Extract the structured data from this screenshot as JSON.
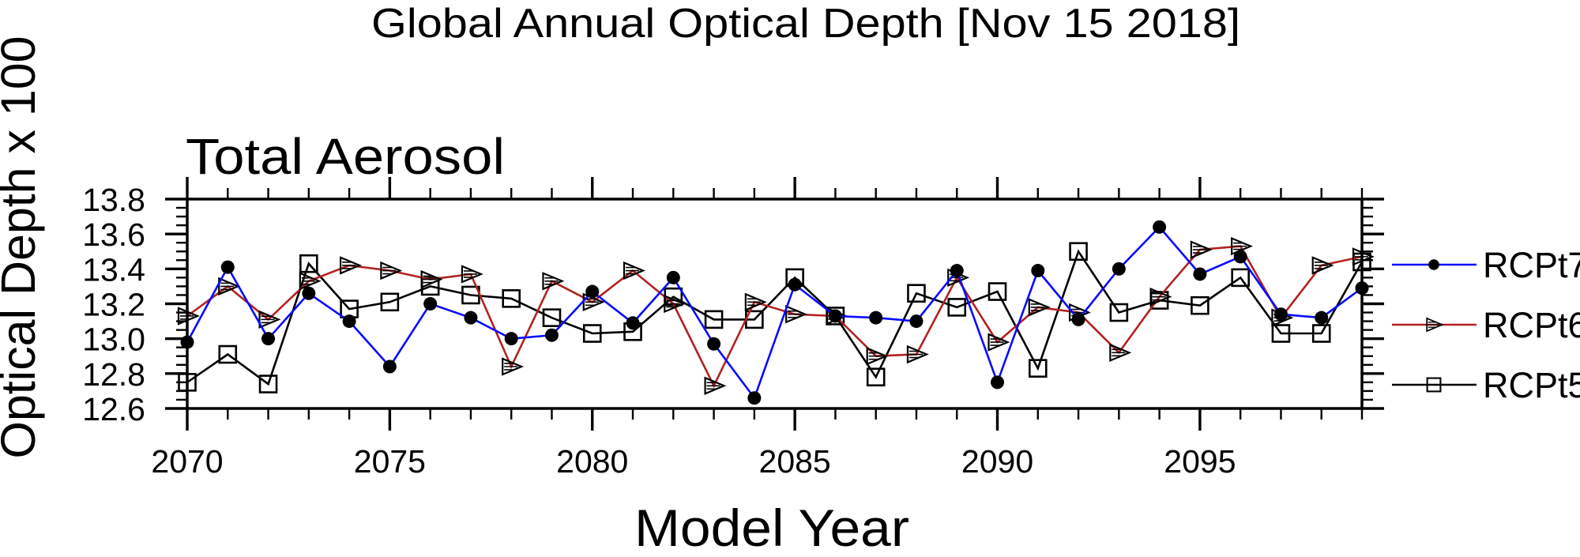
{
  "title": "Global Annual Optical Depth [Nov 15 2018]",
  "plot_heading": "Total Aerosol",
  "x_axis": {
    "label": "Model Year",
    "tick_labels": [
      "2070",
      "2075",
      "2080",
      "2085",
      "2090",
      "2095"
    ],
    "tick_years": [
      2070,
      2075,
      2080,
      2085,
      2090,
      2095
    ]
  },
  "y_axis": {
    "label": "Optical Depth x 100",
    "tick_labels": [
      "13.8",
      "13.6",
      "13.4",
      "13.2",
      "13.0",
      "12.8",
      "12.6"
    ],
    "tick_values": [
      13.8,
      13.6,
      13.4,
      13.2,
      13.0,
      12.8,
      12.6
    ]
  },
  "legend": [
    {
      "label": "RCPt7",
      "color": "#0a0aff",
      "marker": "filled-circle"
    },
    {
      "label": "RCPt6",
      "color": "#b22222",
      "marker": "hatched-right-triangle"
    },
    {
      "label": "RCPt5",
      "color": "#000000",
      "marker": "open-square"
    }
  ],
  "colors": {
    "axis": "#000000",
    "background": "#ffffff",
    "blue": "#0a0aff",
    "red": "#b22222",
    "black": "#000000"
  },
  "chart_data": {
    "type": "line",
    "title": "Global Annual Optical Depth [Nov 15 2018]",
    "subtitle": "Total Aerosol",
    "xlabel": "Model Year",
    "ylabel": "Optical Depth x 100",
    "xlim": [
      2070,
      2099
    ],
    "ylim": [
      12.6,
      13.8
    ],
    "x_major_ticks": [
      2070,
      2075,
      2080,
      2085,
      2090,
      2095
    ],
    "x_minor_step": 1,
    "y_major_ticks": [
      12.6,
      12.8,
      13.0,
      13.2,
      13.4,
      13.6,
      13.8
    ],
    "y_minor_step": 0.05,
    "grid": false,
    "legend_position": "right-outside",
    "x": [
      2070,
      2071,
      2072,
      2073,
      2074,
      2075,
      2076,
      2077,
      2078,
      2079,
      2080,
      2081,
      2082,
      2083,
      2084,
      2085,
      2086,
      2087,
      2088,
      2089,
      2090,
      2091,
      2092,
      2093,
      2094,
      2095,
      2096,
      2097,
      2098,
      2099
    ],
    "series": [
      {
        "name": "RCPt7",
        "color": "#0a0aff",
        "marker": "filled-circle",
        "values": [
          12.98,
          13.41,
          13.0,
          13.26,
          13.1,
          12.84,
          13.2,
          13.12,
          13.0,
          13.02,
          13.27,
          13.09,
          13.35,
          12.97,
          12.66,
          13.31,
          13.13,
          13.12,
          13.1,
          13.39,
          12.75,
          13.39,
          13.11,
          13.4,
          13.64,
          13.37,
          13.47,
          13.14,
          13.12,
          13.29
        ]
      },
      {
        "name": "RCPt6",
        "color": "#b22222",
        "marker": "hatched-right-triangle",
        "values": [
          13.13,
          13.3,
          13.11,
          13.33,
          13.42,
          13.39,
          13.34,
          13.37,
          12.84,
          13.33,
          13.21,
          13.39,
          13.2,
          12.73,
          13.21,
          13.14,
          13.13,
          12.9,
          12.91,
          13.35,
          12.98,
          13.18,
          13.15,
          12.92,
          13.24,
          13.51,
          13.53,
          13.12,
          13.42,
          13.47
        ]
      },
      {
        "name": "RCPt5",
        "color": "#000000",
        "marker": "open-square",
        "values": [
          12.75,
          12.91,
          12.74,
          13.43,
          13.17,
          13.21,
          13.3,
          13.25,
          13.23,
          13.12,
          13.03,
          13.04,
          13.24,
          13.11,
          13.11,
          13.35,
          13.13,
          12.78,
          13.26,
          13.18,
          13.27,
          12.83,
          13.5,
          13.15,
          13.22,
          13.19,
          13.35,
          13.03,
          13.03,
          13.44
        ]
      }
    ]
  }
}
